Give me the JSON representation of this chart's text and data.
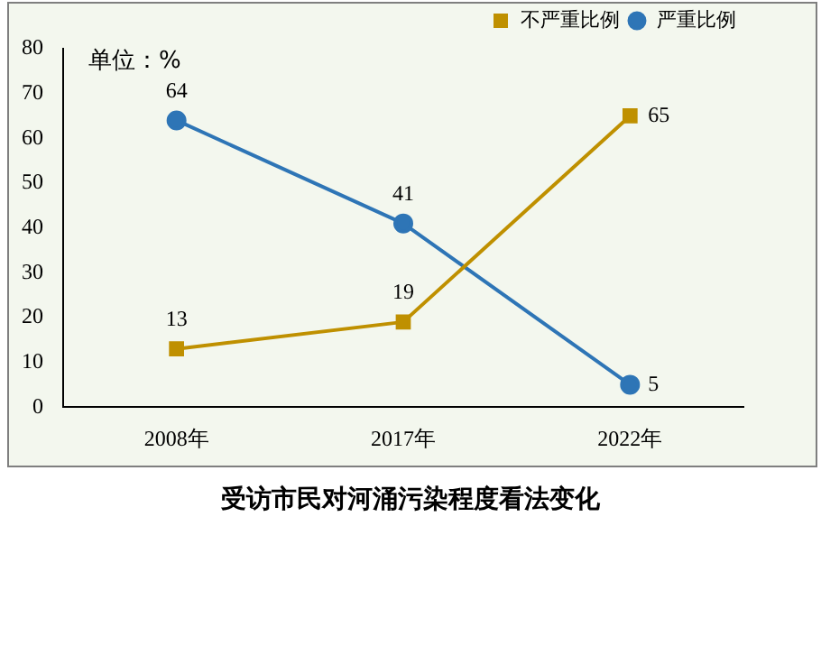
{
  "chart_data": {
    "type": "line",
    "title": "受访市民对河涌污染程度看法变化",
    "annotations": [
      "单位：%"
    ],
    "categories": [
      "2008年",
      "2017年",
      "2022年"
    ],
    "series": [
      {
        "name": "不严重比例",
        "color": "#bf9000",
        "values": [
          13,
          19,
          65
        ],
        "marker": "square"
      },
      {
        "name": "严重比例",
        "color": "#2e75b6",
        "values": [
          64,
          41,
          5
        ],
        "marker": "circle"
      }
    ],
    "ylim": [
      0,
      80
    ],
    "yticks": [
      0,
      10,
      20,
      30,
      40,
      50,
      60,
      70,
      80
    ],
    "grid": false,
    "legend": "top right",
    "data_labels": true,
    "line_style": "solid"
  }
}
